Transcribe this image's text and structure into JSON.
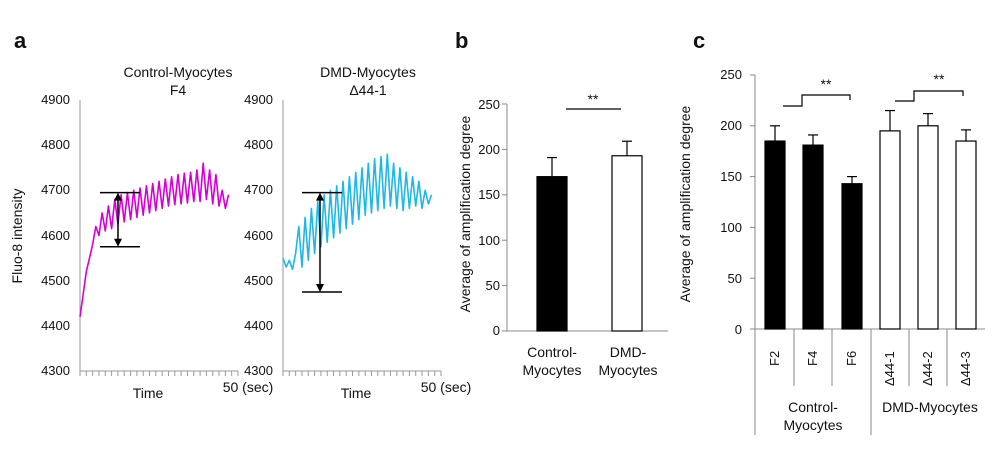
{
  "panels": {
    "a": "a",
    "b": "b",
    "c": "c"
  },
  "chart_data": [
    {
      "id": "a-left",
      "type": "line",
      "title_line1": "Control-Myocytes",
      "title_line2": "F4",
      "ylabel": "Fluo-8 intensity",
      "xlabel": "Time",
      "x_end_label": "50 (sec)",
      "xlim": [
        0,
        50
      ],
      "ylim": [
        4300,
        4900
      ],
      "yticks": [
        "4300",
        "4400",
        "4500",
        "4600",
        "4700",
        "4800",
        "4900"
      ],
      "color": "#d600d6",
      "trace": [
        [
          0,
          4420
        ],
        [
          1,
          4470
        ],
        [
          2,
          4520
        ],
        [
          3,
          4550
        ],
        [
          4,
          4580
        ],
        [
          5,
          4620
        ],
        [
          6,
          4600
        ],
        [
          7,
          4650
        ],
        [
          8,
          4610
        ],
        [
          9,
          4665
        ],
        [
          10,
          4615
        ],
        [
          11,
          4680
        ],
        [
          12,
          4625
        ],
        [
          13,
          4690
        ],
        [
          14,
          4630
        ],
        [
          15,
          4695
        ],
        [
          16,
          4635
        ],
        [
          17,
          4700
        ],
        [
          18,
          4640
        ],
        [
          19,
          4705
        ],
        [
          20,
          4645
        ],
        [
          21,
          4710
        ],
        [
          22,
          4650
        ],
        [
          23,
          4715
        ],
        [
          24,
          4655
        ],
        [
          25,
          4720
        ],
        [
          26,
          4660
        ],
        [
          27,
          4725
        ],
        [
          28,
          4665
        ],
        [
          29,
          4730
        ],
        [
          30,
          4668
        ],
        [
          31,
          4735
        ],
        [
          32,
          4670
        ],
        [
          33,
          4738
        ],
        [
          34,
          4672
        ],
        [
          35,
          4740
        ],
        [
          36,
          4675
        ],
        [
          37,
          4745
        ],
        [
          38,
          4675
        ],
        [
          39,
          4760
        ],
        [
          40,
          4680
        ],
        [
          41,
          4745
        ],
        [
          42,
          4670
        ],
        [
          43,
          4735
        ],
        [
          44,
          4665
        ],
        [
          45,
          4700
        ],
        [
          46,
          4660
        ],
        [
          47,
          4690
        ]
      ],
      "amplitude_arrow": [
        4575,
        4695
      ]
    },
    {
      "id": "a-right",
      "type": "line",
      "title_line1": "DMD-Myocytes",
      "title_line2": "Δ44-1",
      "xlabel": "Time",
      "x_end_label": "50 (sec)",
      "xlim": [
        0,
        50
      ],
      "ylim": [
        4300,
        4900
      ],
      "yticks": [
        "4300",
        "4400",
        "4500",
        "4600",
        "4700",
        "4800",
        "4900"
      ],
      "color": "#1fb7e8",
      "trace": [
        [
          0,
          4550
        ],
        [
          1,
          4530
        ],
        [
          2,
          4545
        ],
        [
          3,
          4525
        ],
        [
          4,
          4560
        ],
        [
          5,
          4620
        ],
        [
          6,
          4530
        ],
        [
          7,
          4640
        ],
        [
          8,
          4545
        ],
        [
          9,
          4660
        ],
        [
          10,
          4560
        ],
        [
          11,
          4675
        ],
        [
          12,
          4575
        ],
        [
          13,
          4690
        ],
        [
          14,
          4585
        ],
        [
          15,
          4700
        ],
        [
          16,
          4595
        ],
        [
          17,
          4710
        ],
        [
          18,
          4605
        ],
        [
          19,
          4720
        ],
        [
          20,
          4615
        ],
        [
          21,
          4730
        ],
        [
          22,
          4625
        ],
        [
          23,
          4740
        ],
        [
          24,
          4635
        ],
        [
          25,
          4750
        ],
        [
          26,
          4645
        ],
        [
          27,
          4760
        ],
        [
          28,
          4650
        ],
        [
          29,
          4770
        ],
        [
          30,
          4655
        ],
        [
          31,
          4775
        ],
        [
          32,
          4660
        ],
        [
          33,
          4780
        ],
        [
          34,
          4665
        ],
        [
          35,
          4760
        ],
        [
          36,
          4660
        ],
        [
          37,
          4750
        ],
        [
          38,
          4655
        ],
        [
          39,
          4740
        ],
        [
          40,
          4660
        ],
        [
          41,
          4730
        ],
        [
          42,
          4665
        ],
        [
          43,
          4720
        ],
        [
          44,
          4660
        ],
        [
          45,
          4700
        ],
        [
          46,
          4670
        ],
        [
          47,
          4690
        ]
      ],
      "amplitude_arrow": [
        4475,
        4695
      ]
    },
    {
      "id": "b",
      "type": "bar",
      "ylabel": "Average of amplification degree",
      "ylim": [
        0,
        250
      ],
      "yticks": [
        "0",
        "50",
        "100",
        "150",
        "200",
        "250"
      ],
      "categories": [
        [
          "Control-",
          "Myocytes"
        ],
        [
          "DMD-",
          "Myocytes"
        ]
      ],
      "values": [
        170,
        193
      ],
      "errors": [
        21,
        16
      ],
      "fills": [
        "#000000",
        "#ffffff"
      ],
      "significance": "**"
    },
    {
      "id": "c",
      "type": "bar",
      "ylabel": "Average of amplification degree",
      "ylim": [
        0,
        250
      ],
      "yticks": [
        "0",
        "50",
        "100",
        "150",
        "200",
        "250"
      ],
      "categories": [
        "F2",
        "F4",
        "F6",
        "Δ44-1",
        "Δ44-2",
        "Δ44-3"
      ],
      "values": [
        185,
        181,
        143,
        195,
        200,
        185
      ],
      "errors": [
        15,
        10,
        7,
        20,
        12,
        11
      ],
      "fills": [
        "#000000",
        "#000000",
        "#000000",
        "#ffffff",
        "#ffffff",
        "#ffffff"
      ],
      "groups": [
        [
          "Control-",
          "Myocytes"
        ],
        [
          "DMD-Myocytes"
        ]
      ],
      "significance": [
        "**",
        "**"
      ]
    }
  ]
}
